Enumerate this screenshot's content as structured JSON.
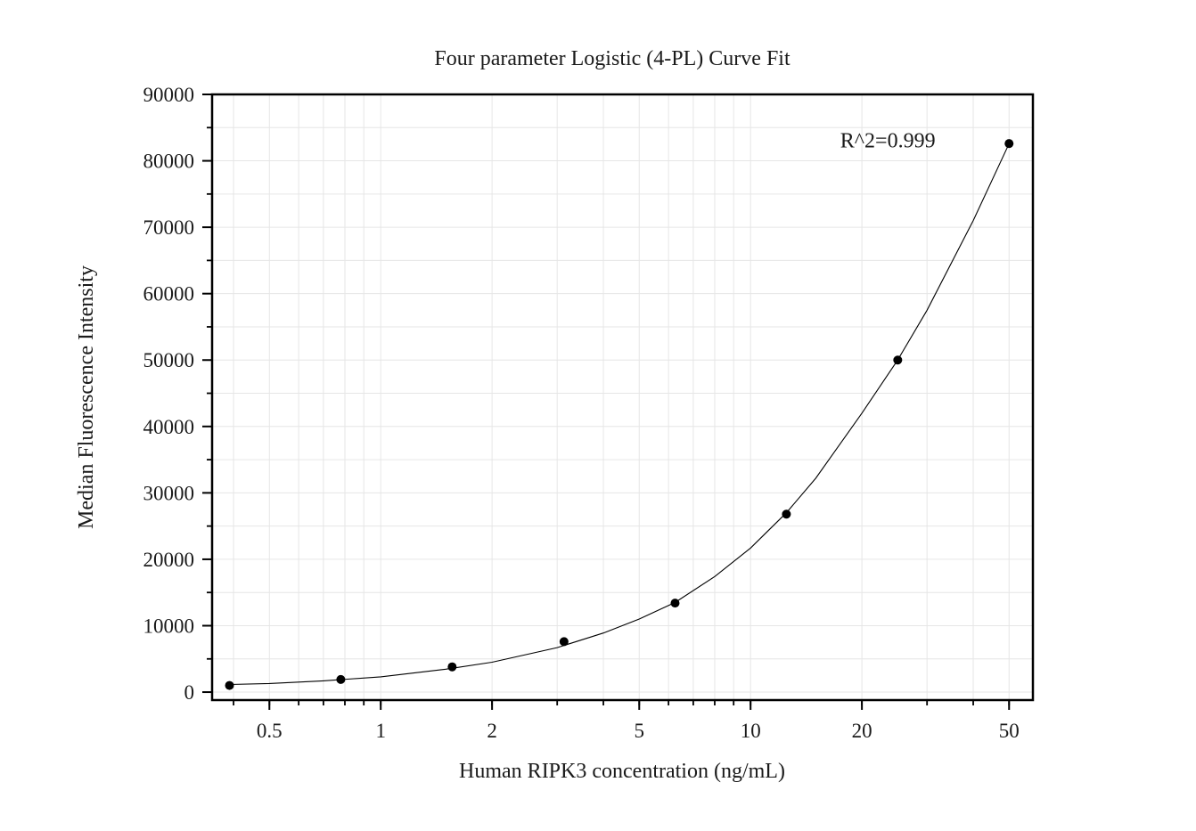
{
  "chart_data": {
    "type": "scatter",
    "title": "Four parameter Logistic (4-PL) Curve Fit",
    "xlabel": "Human RIPK3 concentration (ng/mL)",
    "ylabel": "Median Fluorescence Intensity",
    "x_scale": "log",
    "xlim": [
      0.35,
      58
    ],
    "ylim": [
      -1200,
      90000
    ],
    "x_ticks": [
      0.5,
      1,
      2,
      5,
      10,
      20,
      50
    ],
    "x_tick_labels": [
      "0.5",
      "1",
      "2",
      "5",
      "10",
      "20",
      "50"
    ],
    "y_ticks": [
      0,
      10000,
      20000,
      30000,
      40000,
      50000,
      60000,
      70000,
      80000,
      90000
    ],
    "y_tick_labels": [
      "0",
      "10000",
      "20000",
      "30000",
      "40000",
      "50000",
      "60000",
      "70000",
      "80000",
      "90000"
    ],
    "grid": true,
    "series": [
      {
        "points": [
          {
            "x": 0.39,
            "y": 1000
          },
          {
            "x": 0.78,
            "y": 1900
          },
          {
            "x": 1.56,
            "y": 3800
          },
          {
            "x": 3.13,
            "y": 7600
          },
          {
            "x": 6.25,
            "y": 13400
          },
          {
            "x": 12.5,
            "y": 26800
          },
          {
            "x": 25,
            "y": 50000
          },
          {
            "x": 50,
            "y": 82600
          }
        ],
        "fit": {
          "model": "4-PL",
          "x": [
            0.39,
            0.5,
            0.7,
            1,
            1.5,
            2,
            3,
            4,
            5,
            6.25,
            8,
            10,
            12.5,
            15,
            20,
            25,
            30,
            40,
            50
          ],
          "y": [
            1150,
            1300,
            1700,
            2300,
            3450,
            4500,
            6700,
            8900,
            11000,
            13500,
            17400,
            21700,
            27000,
            32200,
            42000,
            50000,
            57500,
            71000,
            82600
          ]
        },
        "color": "#000000"
      }
    ],
    "annotations": [
      {
        "text": "R^2=0.999",
        "x": 23.5,
        "y": 82000
      }
    ]
  }
}
